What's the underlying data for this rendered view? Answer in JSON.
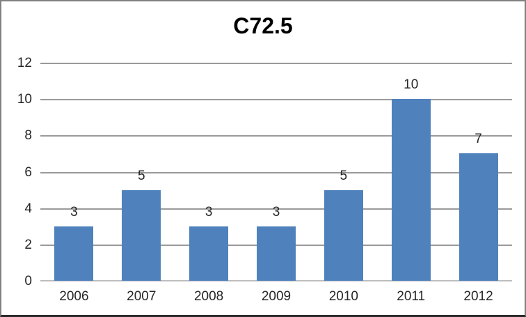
{
  "chart_data": {
    "type": "bar",
    "title": "C72.5",
    "categories": [
      "2006",
      "2007",
      "2008",
      "2009",
      "2010",
      "2011",
      "2012"
    ],
    "values": [
      3,
      5,
      3,
      3,
      5,
      10,
      7
    ],
    "data_labels": [
      "3",
      "5",
      "3",
      "3",
      "5",
      "10",
      "7"
    ],
    "xlabel": "",
    "ylabel": "",
    "ylim": [
      0,
      12
    ],
    "yticks": [
      0,
      2,
      4,
      6,
      8,
      10,
      12
    ],
    "grid": true,
    "legend": "none",
    "colors": {
      "bar": "#4f81bd",
      "gridline": "#9a9a9a",
      "axis_line": "#bdbdbd",
      "label_text": "#262626",
      "title_text": "#000000",
      "background": "#ffffff",
      "border": "#808080"
    }
  }
}
